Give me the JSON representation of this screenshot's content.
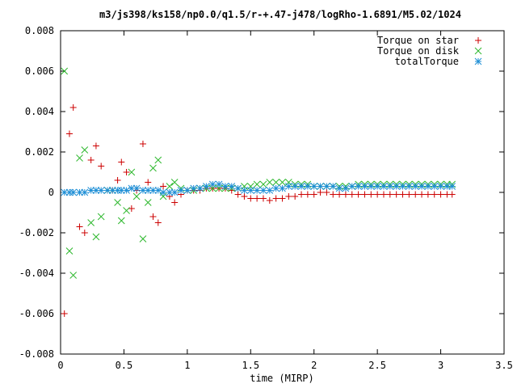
{
  "chart_data": {
    "type": "scatter",
    "title": "m3/js398/ks158/np0.0/q1.5/r-+.47-j478/logRho-1.6891/M5.02/1024",
    "xlabel": "time (MIRP)",
    "ylabel": "",
    "xlim": [
      0,
      3.5
    ],
    "ylim": [
      -0.008,
      0.008
    ],
    "xticks": [
      "0",
      "0.5",
      "1",
      "1.5",
      "2",
      "2.5",
      "3",
      "3.5"
    ],
    "yticks": [
      "-0.008",
      "-0.006",
      "-0.004",
      "-0.002",
      "0",
      "0.002",
      "0.004",
      "0.006",
      "0.008"
    ],
    "xtick_values": [
      0,
      0.5,
      1,
      1.5,
      2,
      2.5,
      3,
      3.5
    ],
    "ytick_values": [
      -0.008,
      -0.006,
      -0.004,
      -0.002,
      0,
      0.002,
      0.004,
      0.006,
      0.008
    ],
    "grid": false,
    "legend_position": "top-right",
    "series": [
      {
        "name": "Torque on star",
        "marker": "plus",
        "color": "#cc0000",
        "points": [
          [
            0.03,
            -0.006
          ],
          [
            0.07,
            0.0029
          ],
          [
            0.1,
            0.0042
          ],
          [
            0.15,
            -0.0017
          ],
          [
            0.19,
            -0.002
          ],
          [
            0.24,
            0.0016
          ],
          [
            0.28,
            0.0023
          ],
          [
            0.32,
            0.0013
          ],
          [
            0.37,
            0.0001
          ],
          [
            0.41,
            0.0001
          ],
          [
            0.45,
            0.0006
          ],
          [
            0.48,
            0.0015
          ],
          [
            0.52,
            0.001
          ],
          [
            0.56,
            -0.0008
          ],
          [
            0.6,
            0.0001
          ],
          [
            0.65,
            0.0024
          ],
          [
            0.69,
            0.0005
          ],
          [
            0.73,
            -0.0012
          ],
          [
            0.77,
            -0.0015
          ],
          [
            0.81,
            0.0003
          ],
          [
            0.86,
            -0.0002
          ],
          [
            0.9,
            -0.0005
          ],
          [
            0.95,
            -0.0001
          ],
          [
            1.0,
            0.0001
          ],
          [
            1.05,
            0.0001
          ],
          [
            1.1,
            0.0001
          ],
          [
            1.15,
            0.0002
          ],
          [
            1.2,
            0.0002
          ],
          [
            1.25,
            0.0002
          ],
          [
            1.3,
            0.0002
          ],
          [
            1.35,
            0.0001
          ],
          [
            1.4,
            -0.0001
          ],
          [
            1.45,
            -0.0002
          ],
          [
            1.5,
            -0.0003
          ],
          [
            1.55,
            -0.0003
          ],
          [
            1.6,
            -0.0003
          ],
          [
            1.65,
            -0.0004
          ],
          [
            1.7,
            -0.0003
          ],
          [
            1.75,
            -0.0003
          ],
          [
            1.8,
            -0.0002
          ],
          [
            1.85,
            -0.0002
          ],
          [
            1.9,
            -0.0001
          ],
          [
            1.95,
            -0.0001
          ],
          [
            2.0,
            -0.0001
          ],
          [
            2.05,
            0.0
          ],
          [
            2.1,
            0.0
          ],
          [
            2.15,
            -0.0001
          ],
          [
            2.2,
            -0.0001
          ],
          [
            2.25,
            -0.0001
          ],
          [
            2.3,
            -0.0001
          ],
          [
            2.35,
            -0.0001
          ],
          [
            2.4,
            -0.0001
          ],
          [
            2.45,
            -0.0001
          ],
          [
            2.5,
            -0.0001
          ],
          [
            2.55,
            -0.0001
          ],
          [
            2.6,
            -0.0001
          ],
          [
            2.65,
            -0.0001
          ],
          [
            2.7,
            -0.0001
          ],
          [
            2.75,
            -0.0001
          ],
          [
            2.8,
            -0.0001
          ],
          [
            2.85,
            -0.0001
          ],
          [
            2.9,
            -0.0001
          ],
          [
            2.95,
            -0.0001
          ],
          [
            3.0,
            -0.0001
          ],
          [
            3.05,
            -0.0001
          ],
          [
            3.09,
            -0.0001
          ]
        ]
      },
      {
        "name": "Torque on disk",
        "marker": "cross",
        "color": "#2eb82e",
        "points": [
          [
            0.03,
            0.006
          ],
          [
            0.07,
            -0.0029
          ],
          [
            0.1,
            -0.0041
          ],
          [
            0.15,
            0.0017
          ],
          [
            0.19,
            0.0021
          ],
          [
            0.24,
            -0.0015
          ],
          [
            0.28,
            -0.0022
          ],
          [
            0.32,
            -0.0012
          ],
          [
            0.37,
            0.0001
          ],
          [
            0.41,
            0.0001
          ],
          [
            0.45,
            -0.0005
          ],
          [
            0.48,
            -0.0014
          ],
          [
            0.52,
            -0.0009
          ],
          [
            0.56,
            0.001
          ],
          [
            0.6,
            -0.0002
          ],
          [
            0.65,
            -0.0023
          ],
          [
            0.69,
            -0.0005
          ],
          [
            0.73,
            0.0012
          ],
          [
            0.77,
            0.0016
          ],
          [
            0.81,
            -0.0002
          ],
          [
            0.86,
            0.0003
          ],
          [
            0.9,
            0.0005
          ],
          [
            0.95,
            0.0002
          ],
          [
            1.0,
            0.0001
          ],
          [
            1.05,
            0.0001
          ],
          [
            1.1,
            0.0002
          ],
          [
            1.15,
            0.0002
          ],
          [
            1.2,
            0.0002
          ],
          [
            1.25,
            0.0002
          ],
          [
            1.3,
            0.0002
          ],
          [
            1.35,
            0.0002
          ],
          [
            1.4,
            0.0002
          ],
          [
            1.45,
            0.0003
          ],
          [
            1.5,
            0.0003
          ],
          [
            1.55,
            0.0004
          ],
          [
            1.6,
            0.0004
          ],
          [
            1.65,
            0.0005
          ],
          [
            1.7,
            0.0005
          ],
          [
            1.75,
            0.0005
          ],
          [
            1.8,
            0.0005
          ],
          [
            1.85,
            0.0004
          ],
          [
            1.9,
            0.0004
          ],
          [
            1.95,
            0.0004
          ],
          [
            2.0,
            0.0003
          ],
          [
            2.05,
            0.0003
          ],
          [
            2.1,
            0.0003
          ],
          [
            2.15,
            0.0003
          ],
          [
            2.2,
            0.0003
          ],
          [
            2.25,
            0.0003
          ],
          [
            2.3,
            0.0003
          ],
          [
            2.35,
            0.0004
          ],
          [
            2.4,
            0.0004
          ],
          [
            2.45,
            0.0004
          ],
          [
            2.5,
            0.0004
          ],
          [
            2.55,
            0.0004
          ],
          [
            2.6,
            0.0004
          ],
          [
            2.65,
            0.0004
          ],
          [
            2.7,
            0.0004
          ],
          [
            2.75,
            0.0004
          ],
          [
            2.8,
            0.0004
          ],
          [
            2.85,
            0.0004
          ],
          [
            2.9,
            0.0004
          ],
          [
            2.95,
            0.0004
          ],
          [
            3.0,
            0.0004
          ],
          [
            3.05,
            0.0004
          ],
          [
            3.09,
            0.0004
          ]
        ]
      },
      {
        "name": "totalTorque",
        "marker": "star",
        "color": "#1f8fd6",
        "points": [
          [
            0.03,
            0.0
          ],
          [
            0.07,
            0.0
          ],
          [
            0.1,
            0.0
          ],
          [
            0.15,
            0.0
          ],
          [
            0.19,
            0.0
          ],
          [
            0.24,
            0.0001
          ],
          [
            0.28,
            0.0001
          ],
          [
            0.32,
            0.0001
          ],
          [
            0.37,
            0.0001
          ],
          [
            0.41,
            0.0001
          ],
          [
            0.45,
            0.0001
          ],
          [
            0.48,
            0.0001
          ],
          [
            0.52,
            0.0001
          ],
          [
            0.56,
            0.0002
          ],
          [
            0.6,
            0.0002
          ],
          [
            0.65,
            0.0001
          ],
          [
            0.69,
            0.0001
          ],
          [
            0.73,
            0.0001
          ],
          [
            0.77,
            0.0001
          ],
          [
            0.81,
            0.0
          ],
          [
            0.86,
            0.0
          ],
          [
            0.9,
            0.0
          ],
          [
            0.95,
            0.0001
          ],
          [
            1.0,
            0.0001
          ],
          [
            1.05,
            0.0002
          ],
          [
            1.1,
            0.0002
          ],
          [
            1.15,
            0.0003
          ],
          [
            1.2,
            0.0004
          ],
          [
            1.25,
            0.0004
          ],
          [
            1.3,
            0.0003
          ],
          [
            1.35,
            0.0003
          ],
          [
            1.4,
            0.0002
          ],
          [
            1.45,
            0.0001
          ],
          [
            1.5,
            0.0001
          ],
          [
            1.55,
            0.0001
          ],
          [
            1.6,
            0.0001
          ],
          [
            1.65,
            0.0001
          ],
          [
            1.7,
            0.0002
          ],
          [
            1.75,
            0.0002
          ],
          [
            1.8,
            0.0003
          ],
          [
            1.85,
            0.0003
          ],
          [
            1.9,
            0.0003
          ],
          [
            1.95,
            0.0003
          ],
          [
            2.0,
            0.0003
          ],
          [
            2.05,
            0.0003
          ],
          [
            2.1,
            0.0003
          ],
          [
            2.15,
            0.0003
          ],
          [
            2.2,
            0.0002
          ],
          [
            2.25,
            0.0002
          ],
          [
            2.3,
            0.0003
          ],
          [
            2.35,
            0.0003
          ],
          [
            2.4,
            0.0003
          ],
          [
            2.45,
            0.0003
          ],
          [
            2.5,
            0.0003
          ],
          [
            2.55,
            0.0003
          ],
          [
            2.6,
            0.0003
          ],
          [
            2.65,
            0.0003
          ],
          [
            2.7,
            0.0003
          ],
          [
            2.75,
            0.0003
          ],
          [
            2.8,
            0.0003
          ],
          [
            2.85,
            0.0003
          ],
          [
            2.9,
            0.0003
          ],
          [
            2.95,
            0.0003
          ],
          [
            3.0,
            0.0003
          ],
          [
            3.05,
            0.0003
          ],
          [
            3.09,
            0.0003
          ]
        ]
      }
    ]
  }
}
